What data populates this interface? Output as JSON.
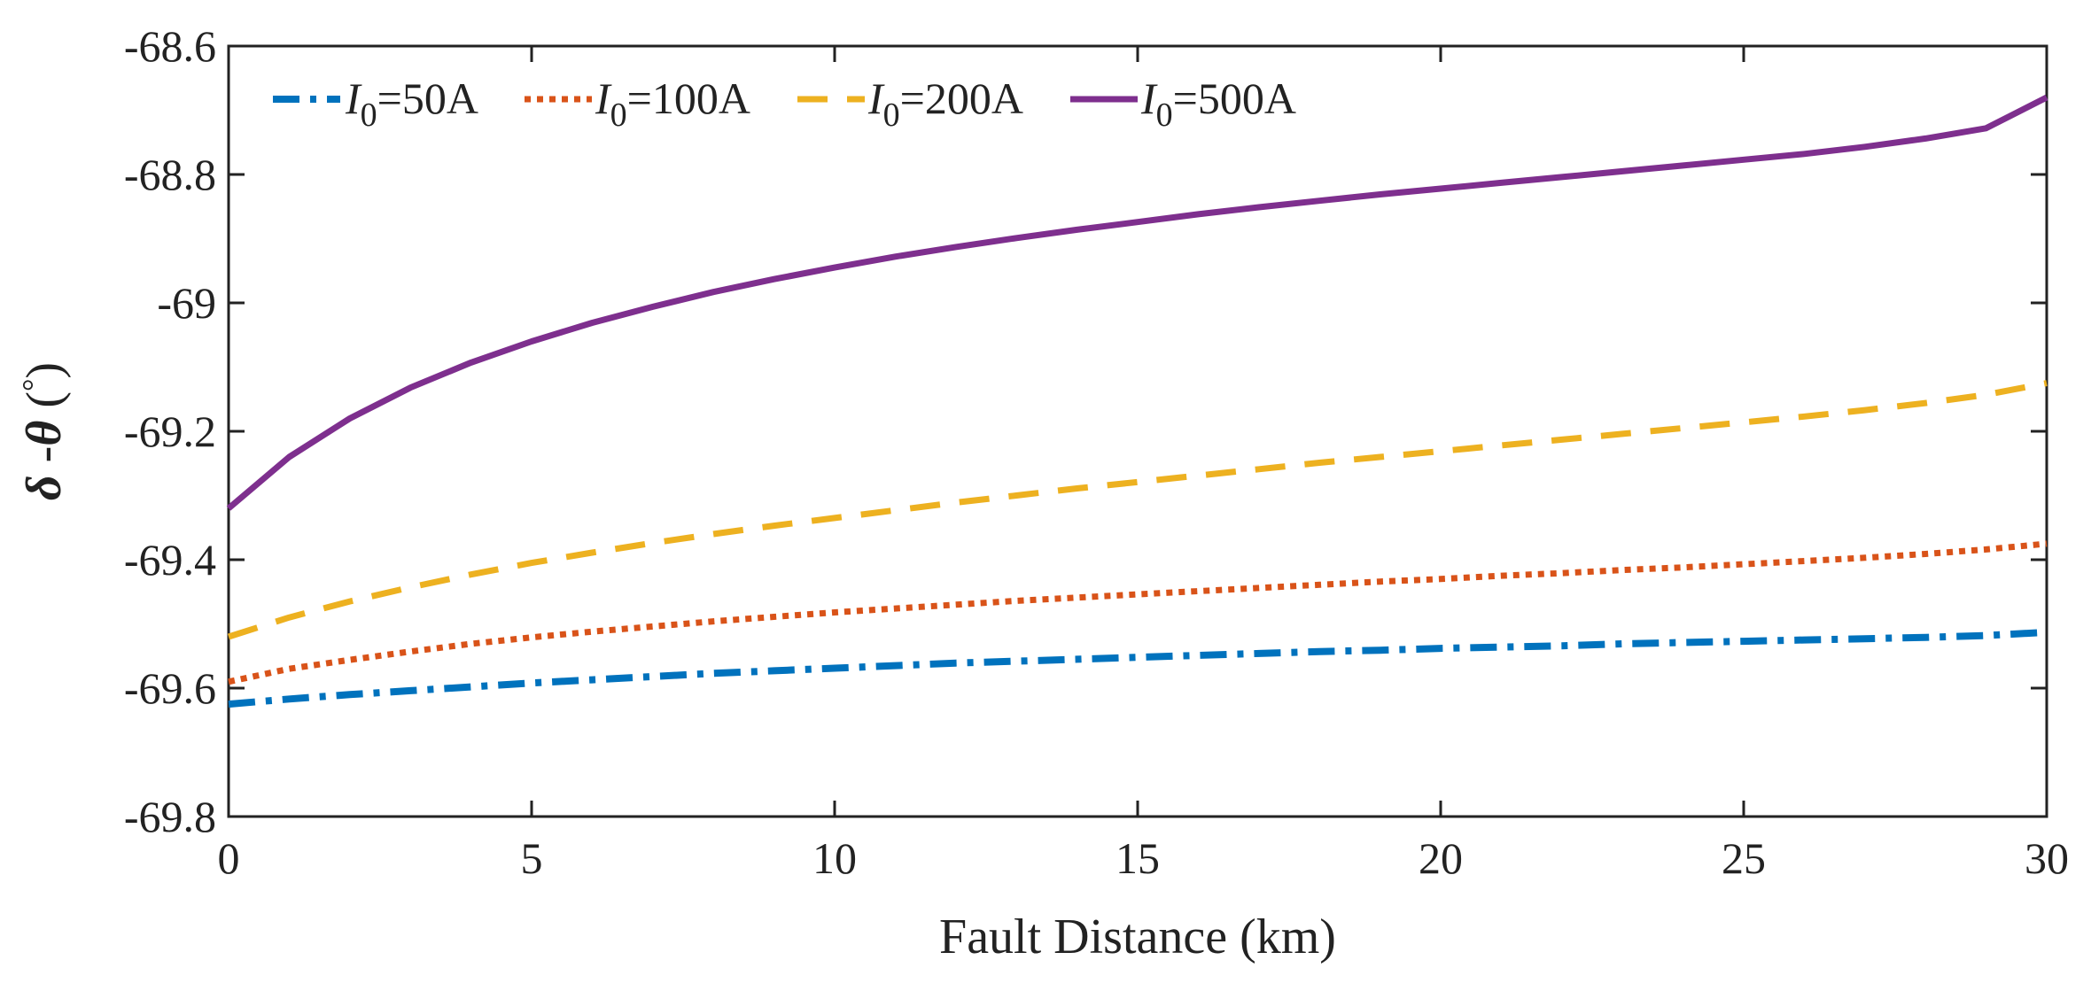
{
  "chart_data": {
    "type": "line",
    "xlabel": "Fault Distance (km)",
    "ylabel": {
      "symbol1": "δ",
      "separator": " -",
      "symbol2": "θ",
      "unit_open": " (",
      "unit": "°",
      "unit_close": ")"
    },
    "xlim": [
      0,
      30
    ],
    "ylim": [
      -69.8,
      -68.6
    ],
    "xticks": [
      0,
      5,
      10,
      15,
      20,
      25,
      30
    ],
    "xtick_labels": [
      "0",
      "5",
      "10",
      "15",
      "20",
      "25",
      "30"
    ],
    "yticks": [
      -69.8,
      -69.6,
      -69.4,
      -69.2,
      -69,
      -68.8,
      -68.6
    ],
    "ytick_labels": [
      "-69.8",
      "-69.6",
      "-69.4",
      "-69.2",
      "-69",
      "-68.8",
      "-68.6"
    ],
    "grid": false,
    "legend_position": "top-left",
    "x": [
      0,
      1,
      2,
      3,
      4,
      5,
      6,
      7,
      8,
      9,
      10,
      11,
      12,
      13,
      14,
      15,
      16,
      17,
      18,
      19,
      20,
      21,
      22,
      23,
      24,
      25,
      26,
      27,
      28,
      29,
      30
    ],
    "series": [
      {
        "name": "I0=50A",
        "legend_sym": "I",
        "legend_sub": "0",
        "legend_value": "=50A",
        "color": "#0072bd",
        "style": "dashdot",
        "values": [
          -69.625,
          -69.617,
          -69.61,
          -69.604,
          -69.598,
          -69.592,
          -69.587,
          -69.582,
          -69.577,
          -69.573,
          -69.569,
          -69.565,
          -69.561,
          -69.558,
          -69.555,
          -69.552,
          -69.549,
          -69.546,
          -69.543,
          -69.541,
          -69.538,
          -69.536,
          -69.534,
          -69.531,
          -69.529,
          -69.527,
          -69.525,
          -69.523,
          -69.521,
          -69.518,
          -69.513
        ]
      },
      {
        "name": "I0=100A",
        "legend_sym": "I",
        "legend_sub": "0",
        "legend_value": "=100A",
        "color": "#d95319",
        "style": "dotted",
        "values": [
          -69.59,
          -69.57,
          -69.556,
          -69.543,
          -69.531,
          -69.521,
          -69.512,
          -69.504,
          -69.496,
          -69.489,
          -69.482,
          -69.476,
          -69.47,
          -69.464,
          -69.459,
          -69.454,
          -69.449,
          -69.444,
          -69.439,
          -69.434,
          -69.43,
          -69.425,
          -69.421,
          -69.416,
          -69.412,
          -69.407,
          -69.402,
          -69.397,
          -69.391,
          -69.384,
          -69.375
        ]
      },
      {
        "name": "I0=200A",
        "legend_sym": "I",
        "legend_sub": "0",
        "legend_value": "=200A",
        "color": "#edb120",
        "style": "dashed",
        "values": [
          -69.52,
          -69.49,
          -69.465,
          -69.443,
          -69.423,
          -69.405,
          -69.389,
          -69.374,
          -69.36,
          -69.347,
          -69.335,
          -69.323,
          -69.311,
          -69.3,
          -69.289,
          -69.279,
          -69.269,
          -69.259,
          -69.249,
          -69.24,
          -69.231,
          -69.222,
          -69.213,
          -69.204,
          -69.195,
          -69.186,
          -69.177,
          -69.167,
          -69.156,
          -69.143,
          -69.125
        ]
      },
      {
        "name": "I0=500A",
        "legend_sym": "I",
        "legend_sub": "0",
        "legend_value": "=500A",
        "color": "#7e2f8e",
        "style": "solid",
        "values": [
          -69.32,
          -69.24,
          -69.18,
          -69.132,
          -69.093,
          -69.06,
          -69.031,
          -69.006,
          -68.983,
          -68.963,
          -68.945,
          -68.928,
          -68.913,
          -68.899,
          -68.886,
          -68.874,
          -68.862,
          -68.851,
          -68.841,
          -68.831,
          -68.822,
          -68.813,
          -68.804,
          -68.795,
          -68.786,
          -68.777,
          -68.768,
          -68.757,
          -68.744,
          -68.728,
          -68.68
        ]
      }
    ]
  }
}
